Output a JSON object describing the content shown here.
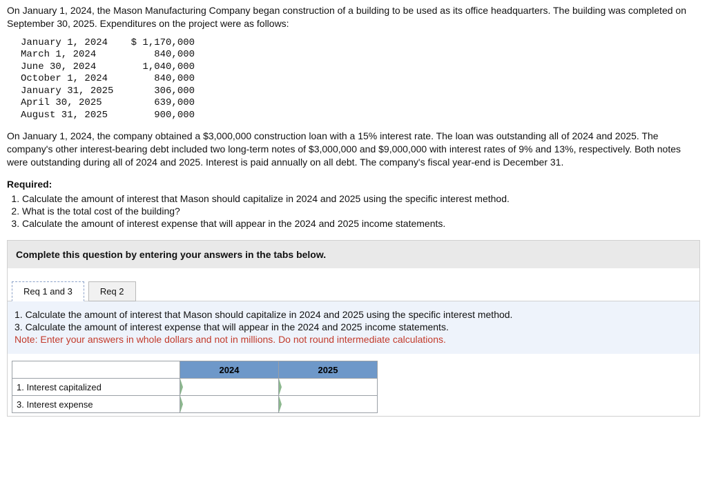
{
  "intro": "On January 1, 2024, the Mason Manufacturing Company began construction of a building to be used as its office headquarters. The building was completed on September 30, 2025. Expenditures on the project were as follows:",
  "expenditures": [
    {
      "date": "January 1, 2024",
      "amount": "$ 1,170,000"
    },
    {
      "date": "March 1, 2024",
      "amount": "840,000"
    },
    {
      "date": "June 30, 2024",
      "amount": "1,040,000"
    },
    {
      "date": "October 1, 2024",
      "amount": "840,000"
    },
    {
      "date": "January 31, 2025",
      "amount": "306,000"
    },
    {
      "date": "April 30, 2025",
      "amount": "639,000"
    },
    {
      "date": "August 31, 2025",
      "amount": "900,000"
    }
  ],
  "para2": "On January 1, 2024, the company obtained a $3,000,000 construction loan with a 15% interest rate. The loan was outstanding all of 2024 and 2025. The company's other interest-bearing debt included two long-term notes of $3,000,000 and $9,000,000 with interest rates of 9% and 13%, respectively. Both notes were outstanding during all of 2024 and 2025. Interest is paid annually on all debt. The company's fiscal year-end is December 31.",
  "required_label": "Required:",
  "requirements": [
    "Calculate the amount of interest that Mason should capitalize in 2024 and 2025 using the specific interest method.",
    "What is the total cost of the building?",
    "Calculate the amount of interest expense that will appear in the 2024 and 2025 income statements."
  ],
  "instr_bar": "Complete this question by entering your answers in the tabs below.",
  "tabs": {
    "tab1": "Req 1 and 3",
    "tab2": "Req 2"
  },
  "tab_body": {
    "line1": "1. Calculate the amount of interest that Mason should capitalize in 2024 and 2025 using the specific interest method.",
    "line3": "3. Calculate the amount of interest expense that will appear in the 2024 and 2025 income statements.",
    "note": "Note: Enter your answers in whole dollars and not in millions. Do not round intermediate calculations."
  },
  "answer_table": {
    "years": [
      "2024",
      "2025"
    ],
    "rows": [
      "1. Interest capitalized",
      "3. Interest expense"
    ]
  },
  "colors": {
    "header_bg": "#6e98c9",
    "tab_body_bg": "#eef3fb",
    "note_color": "#c23a2b"
  }
}
